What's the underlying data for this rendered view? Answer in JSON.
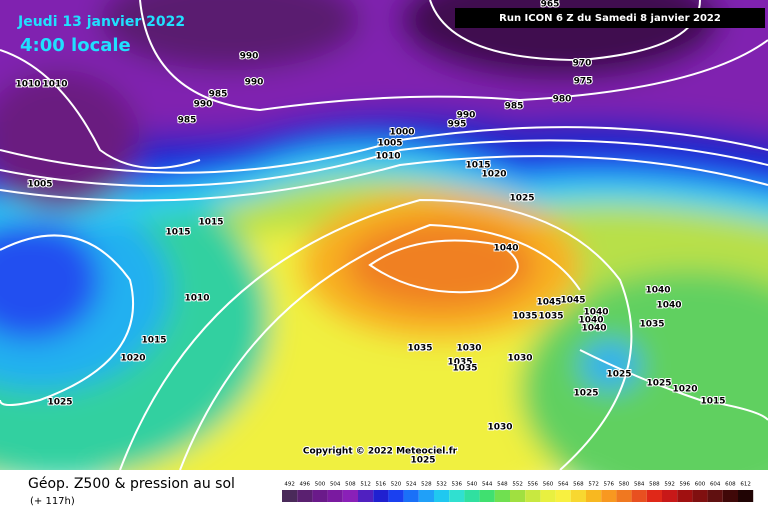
{
  "header": {
    "date": "Jeudi 13 janvier 2022",
    "time": "4:00 locale",
    "run": "Run ICON 6 Z du Samedi 8 janvier 2022"
  },
  "isobar_labels": [
    "990",
    "990",
    "985",
    "990",
    "985",
    "1010",
    "1010",
    "1005",
    "1000",
    "995",
    "990",
    "985",
    "980",
    "975",
    "970",
    "965",
    "1005",
    "1010",
    "1015",
    "1020",
    "1025",
    "1015",
    "1015",
    "1040",
    "1010",
    "1015",
    "1020",
    "1025",
    "1045",
    "1045",
    "1035",
    "1035",
    "1040",
    "1040",
    "1040",
    "1035",
    "1030",
    "1035",
    "1035",
    "1030",
    "1025",
    "1025",
    "1025",
    "1020",
    "1015",
    "1035",
    "1040",
    "1040",
    "1030",
    "1025"
  ],
  "copyright": "Copyright © 2022 Meteociel.fr",
  "footer": {
    "title": "Géop. Z500 & pression au sol",
    "lead": "(+ 117h)"
  },
  "scale": {
    "values": [
      492,
      496,
      500,
      504,
      508,
      512,
      516,
      520,
      524,
      528,
      532,
      536,
      540,
      544,
      548,
      552,
      556,
      560,
      564,
      568,
      572,
      576,
      580,
      584,
      588,
      592,
      596,
      600,
      604,
      608,
      612
    ],
    "colors": [
      "#4a2a5a",
      "#5a2070",
      "#6a1a8a",
      "#7a1aa0",
      "#8a20b8",
      "#5020c0",
      "#2020d0",
      "#1a40f0",
      "#1a70f8",
      "#20a0f8",
      "#20c8f0",
      "#30e0d0",
      "#30e0a0",
      "#40e070",
      "#70e050",
      "#a0e040",
      "#c8e840",
      "#e8f040",
      "#f8f040",
      "#f8d830",
      "#f8b820",
      "#f89820",
      "#f07820",
      "#e85020",
      "#e02818",
      "#c81818",
      "#a01010",
      "#801010",
      "#601010",
      "#400808",
      "#200404"
    ]
  }
}
